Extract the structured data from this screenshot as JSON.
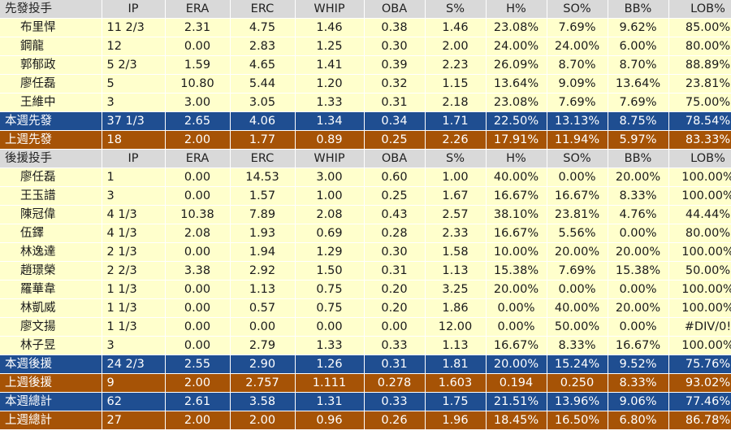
{
  "starters": {
    "header": [
      "先發投手",
      "IP",
      "ERA",
      "ERC",
      "WHIP",
      "OBA",
      "S%",
      "H%",
      "SO%",
      "BB%",
      "LOB%"
    ],
    "rows": [
      [
        "布里悍",
        "11 2/3",
        "2.31",
        "4.75",
        "1.46",
        "0.38",
        "1.46",
        "23.08%",
        "7.69%",
        "9.62%",
        "85.00%"
      ],
      [
        "鋼龍",
        "12",
        "0.00",
        "2.83",
        "1.25",
        "0.30",
        "2.00",
        "24.00%",
        "24.00%",
        "6.00%",
        "80.00%"
      ],
      [
        "郭郁政",
        "5 2/3",
        "1.59",
        "4.65",
        "1.41",
        "0.39",
        "2.23",
        "26.09%",
        "8.70%",
        "8.70%",
        "88.89%"
      ],
      [
        "廖任磊",
        "5",
        "10.80",
        "5.44",
        "1.20",
        "0.32",
        "1.15",
        "13.64%",
        "9.09%",
        "13.64%",
        "23.81%"
      ],
      [
        "王維中",
        "3",
        "3.00",
        "3.05",
        "1.33",
        "0.31",
        "2.18",
        "23.08%",
        "7.69%",
        "7.69%",
        "75.00%"
      ]
    ],
    "this_week": [
      "本週先發",
      "37 1/3",
      "2.65",
      "4.06",
      "1.34",
      "0.34",
      "1.71",
      "22.50%",
      "13.13%",
      "8.75%",
      "78.54%"
    ],
    "last_week": [
      "上週先發",
      "18",
      "2.00",
      "1.77",
      "0.89",
      "0.25",
      "2.26",
      "17.91%",
      "11.94%",
      "5.97%",
      "83.33%"
    ]
  },
  "relievers": {
    "header": [
      "後援投手",
      "IP",
      "ERA",
      "ERC",
      "WHIP",
      "OBA",
      "S%",
      "H%",
      "SO%",
      "BB%",
      "LOB%"
    ],
    "rows": [
      [
        "廖任磊",
        "1",
        "0.00",
        "14.53",
        "3.00",
        "0.60",
        "1.00",
        "40.00%",
        "0.00%",
        "20.00%",
        "100.00%"
      ],
      [
        "王玉譜",
        "3",
        "0.00",
        "1.57",
        "1.00",
        "0.25",
        "1.67",
        "16.67%",
        "16.67%",
        "8.33%",
        "100.00%"
      ],
      [
        "陳冠偉",
        "4 1/3",
        "10.38",
        "7.89",
        "2.08",
        "0.43",
        "2.57",
        "38.10%",
        "23.81%",
        "4.76%",
        "44.44%"
      ],
      [
        "伍鐸",
        "4 1/3",
        "2.08",
        "1.93",
        "0.69",
        "0.28",
        "2.33",
        "16.67%",
        "5.56%",
        "0.00%",
        "80.00%"
      ],
      [
        "林逸達",
        "2 1/3",
        "0.00",
        "1.94",
        "1.29",
        "0.30",
        "1.58",
        "10.00%",
        "20.00%",
        "20.00%",
        "100.00%"
      ],
      [
        "趙璟榮",
        "2 2/3",
        "3.38",
        "2.92",
        "1.50",
        "0.31",
        "1.13",
        "15.38%",
        "7.69%",
        "15.38%",
        "50.00%"
      ],
      [
        "羅華韋",
        "1 1/3",
        "0.00",
        "1.13",
        "0.75",
        "0.20",
        "3.25",
        "20.00%",
        "0.00%",
        "0.00%",
        "100.00%"
      ],
      [
        "林凱威",
        "1 1/3",
        "0.00",
        "0.57",
        "0.75",
        "0.20",
        "1.86",
        "0.00%",
        "40.00%",
        "20.00%",
        "100.00%"
      ],
      [
        "廖文揚",
        "1 1/3",
        "0.00",
        "0.00",
        "0.00",
        "0.00",
        "12.00",
        "0.00%",
        "50.00%",
        "0.00%",
        "#DIV/0!"
      ],
      [
        "林子昱",
        "3",
        "0.00",
        "2.79",
        "1.33",
        "0.33",
        "1.13",
        "16.67%",
        "8.33%",
        "16.67%",
        "100.00%"
      ]
    ],
    "this_week": [
      "本週後援",
      "24 2/3",
      "2.55",
      "2.90",
      "1.26",
      "0.31",
      "1.81",
      "20.00%",
      "15.24%",
      "9.52%",
      "75.76%"
    ],
    "last_week": [
      "上週後援",
      "9",
      "2.00",
      "2.757",
      "1.111",
      "0.278",
      "1.603",
      "0.194",
      "0.250",
      "8.33%",
      "93.02%"
    ]
  },
  "totals": {
    "this_week": [
      "本週總計",
      "62",
      "2.61",
      "3.58",
      "1.31",
      "0.33",
      "1.75",
      "21.51%",
      "13.96%",
      "9.06%",
      "77.46%"
    ],
    "last_week": [
      "上週總計",
      "27",
      "2.00",
      "2.00",
      "0.96",
      "0.26",
      "1.96",
      "18.45%",
      "16.50%",
      "6.80%",
      "86.78%"
    ]
  },
  "colors": {
    "header_bg": "#d9d9d9",
    "row_bg": "#ffffcc",
    "this_week_bg": "#1f4e91",
    "last_week_bg": "#a65306"
  }
}
